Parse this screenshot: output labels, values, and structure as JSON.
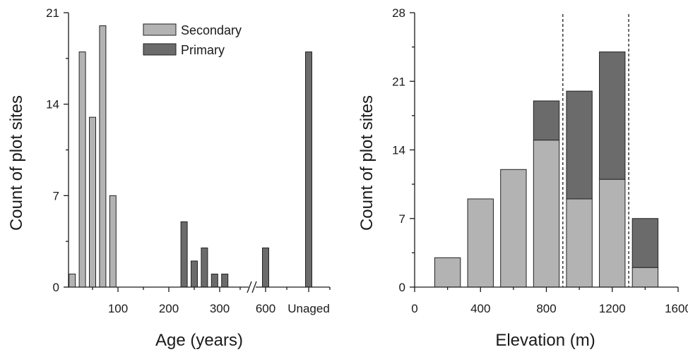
{
  "colors": {
    "secondary": "#b3b3b3",
    "primary": "#6b6b6b"
  },
  "chart_data": [
    {
      "type": "bar",
      "xlabel": "Age (years)",
      "ylabel": "Count of plot sites",
      "ylim": [
        0,
        21
      ],
      "y_ticks": [
        "0",
        "7",
        "14",
        "21"
      ],
      "x_tick_labels": [
        "100",
        "200",
        "300",
        "600",
        "Unaged"
      ],
      "axis_break": true,
      "legend": {
        "placement": "top-center",
        "entries": [
          "Secondary",
          "Primary"
        ]
      },
      "series": [
        {
          "name": "Secondary",
          "points": [
            {
              "x": 10,
              "value": 1
            },
            {
              "x": 30,
              "value": 18
            },
            {
              "x": 50,
              "value": 13
            },
            {
              "x": 70,
              "value": 20
            },
            {
              "x": 90,
              "value": 7
            }
          ]
        },
        {
          "name": "Primary",
          "points": [
            {
              "x": 230,
              "value": 5
            },
            {
              "x": 250,
              "value": 2
            },
            {
              "x": 270,
              "value": 3
            },
            {
              "x": 290,
              "value": 1
            },
            {
              "x": 310,
              "value": 1
            },
            {
              "x": 600,
              "value": 3
            },
            {
              "x": "Unaged",
              "value": 18
            }
          ]
        }
      ]
    },
    {
      "type": "bar",
      "stacked": true,
      "xlabel": "Elevation (m)",
      "ylabel": "Count of plot sites",
      "xlim": [
        0,
        1600
      ],
      "ylim": [
        0,
        28
      ],
      "x_ticks": [
        "0",
        "400",
        "800",
        "1200",
        "1600"
      ],
      "y_ticks": [
        "0",
        "7",
        "14",
        "21",
        "28"
      ],
      "bin_centers": [
        200,
        400,
        600,
        800,
        1000,
        1200,
        1400
      ],
      "series": [
        {
          "name": "Secondary",
          "values": [
            3,
            9,
            12,
            15,
            9,
            11,
            2
          ]
        },
        {
          "name": "Primary",
          "values": [
            0,
            0,
            0,
            4,
            11,
            13,
            5
          ]
        }
      ],
      "reference_lines_x": [
        900,
        1300
      ]
    }
  ]
}
